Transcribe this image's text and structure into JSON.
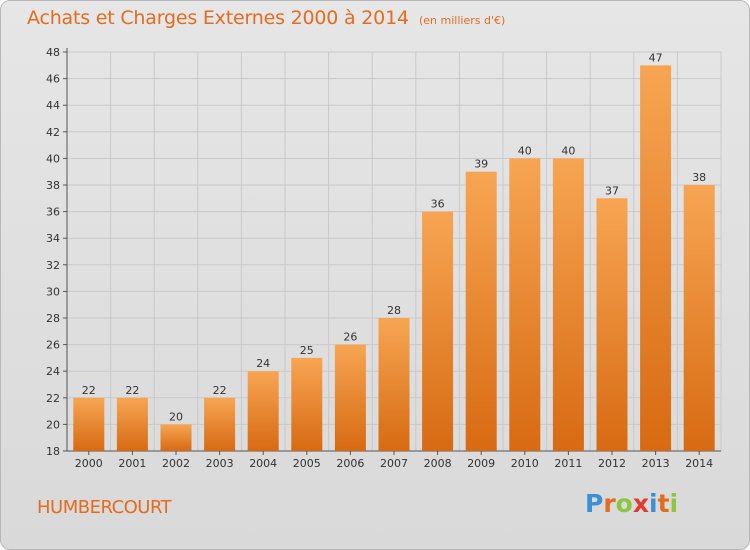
{
  "header": {
    "title": "Achats et Charges Externes 2000 à 2014",
    "subtitle": "(en milliers d'€)"
  },
  "town": "HUMBERCOURT",
  "logo": {
    "letters": [
      "P",
      "r",
      "o",
      "x",
      "i",
      "t",
      "i"
    ],
    "colors": [
      "#3b8fd6",
      "#e36c1f",
      "#8cc63f",
      "#e33b2f",
      "#3b8fd6",
      "#e36c1f",
      "#8cc63f"
    ]
  },
  "colors": {
    "bar_top": "#f7a553",
    "bar_bottom": "#d76a12",
    "accent": "#e36c1f"
  },
  "chart_data": {
    "type": "bar",
    "categories": [
      "2000",
      "2001",
      "2002",
      "2003",
      "2004",
      "2005",
      "2006",
      "2007",
      "2008",
      "2009",
      "2010",
      "2011",
      "2012",
      "2013",
      "2014"
    ],
    "values": [
      22,
      22,
      20,
      22,
      24,
      25,
      26,
      28,
      36,
      39,
      40,
      40,
      37,
      47,
      38
    ],
    "value_labels": [
      "22",
      "22",
      "20",
      "22",
      "24",
      "25",
      "26",
      "28",
      "36",
      "39",
      "40",
      "40",
      "37",
      "47",
      "38"
    ],
    "ylim": [
      18,
      48
    ],
    "yticks": [
      "18",
      "20",
      "22",
      "24",
      "26",
      "28",
      "30",
      "32",
      "34",
      "36",
      "38",
      "40",
      "42",
      "44",
      "46",
      "48"
    ],
    "grid": true,
    "xlabel": "",
    "ylabel": ""
  }
}
